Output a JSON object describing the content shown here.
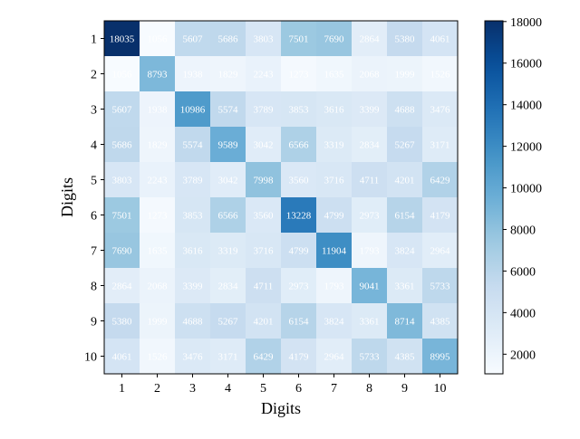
{
  "chart_data": {
    "type": "heatmap",
    "title": "",
    "xlabel": "Digits",
    "ylabel": "Digits",
    "x_categories": [
      "1",
      "2",
      "3",
      "4",
      "5",
      "6",
      "7",
      "8",
      "9",
      "10"
    ],
    "y_categories": [
      "1",
      "2",
      "3",
      "4",
      "5",
      "6",
      "7",
      "8",
      "9",
      "10"
    ],
    "values": [
      [
        18035,
        1056,
        5607,
        5686,
        3803,
        7501,
        7690,
        2864,
        5380,
        4061
      ],
      [
        1056,
        8793,
        1938,
        1829,
        2243,
        1273,
        1635,
        2068,
        1999,
        1526
      ],
      [
        5607,
        1938,
        10986,
        5574,
        3789,
        3853,
        3616,
        3399,
        4688,
        3476
      ],
      [
        5686,
        1829,
        5574,
        9589,
        3042,
        6566,
        3319,
        2834,
        5267,
        3171
      ],
      [
        3803,
        2243,
        3789,
        3042,
        7998,
        3560,
        3716,
        4711,
        4201,
        6429
      ],
      [
        7501,
        1273,
        3853,
        6566,
        3560,
        13228,
        4799,
        2973,
        6154,
        4179
      ],
      [
        7690,
        1635,
        3616,
        3319,
        3716,
        4799,
        11904,
        1793,
        3824,
        2964
      ],
      [
        2864,
        2068,
        3399,
        2834,
        4711,
        2973,
        1793,
        9041,
        3361,
        5733
      ],
      [
        5380,
        1999,
        4688,
        5267,
        4201,
        6154,
        3824,
        3361,
        8714,
        4385
      ],
      [
        4061,
        1526,
        3476,
        3171,
        6429,
        4179,
        2964,
        5733,
        4385,
        8995
      ]
    ],
    "colormap": "Blues",
    "colorbar": {
      "range": [
        1056,
        18035
      ],
      "ticks": [
        "2000",
        "4000",
        "6000",
        "8000",
        "10000",
        "12000",
        "14000",
        "16000",
        "18000"
      ]
    },
    "cell_text_color": "#ffffff",
    "grid": false,
    "legend": "colorbar-right"
  }
}
